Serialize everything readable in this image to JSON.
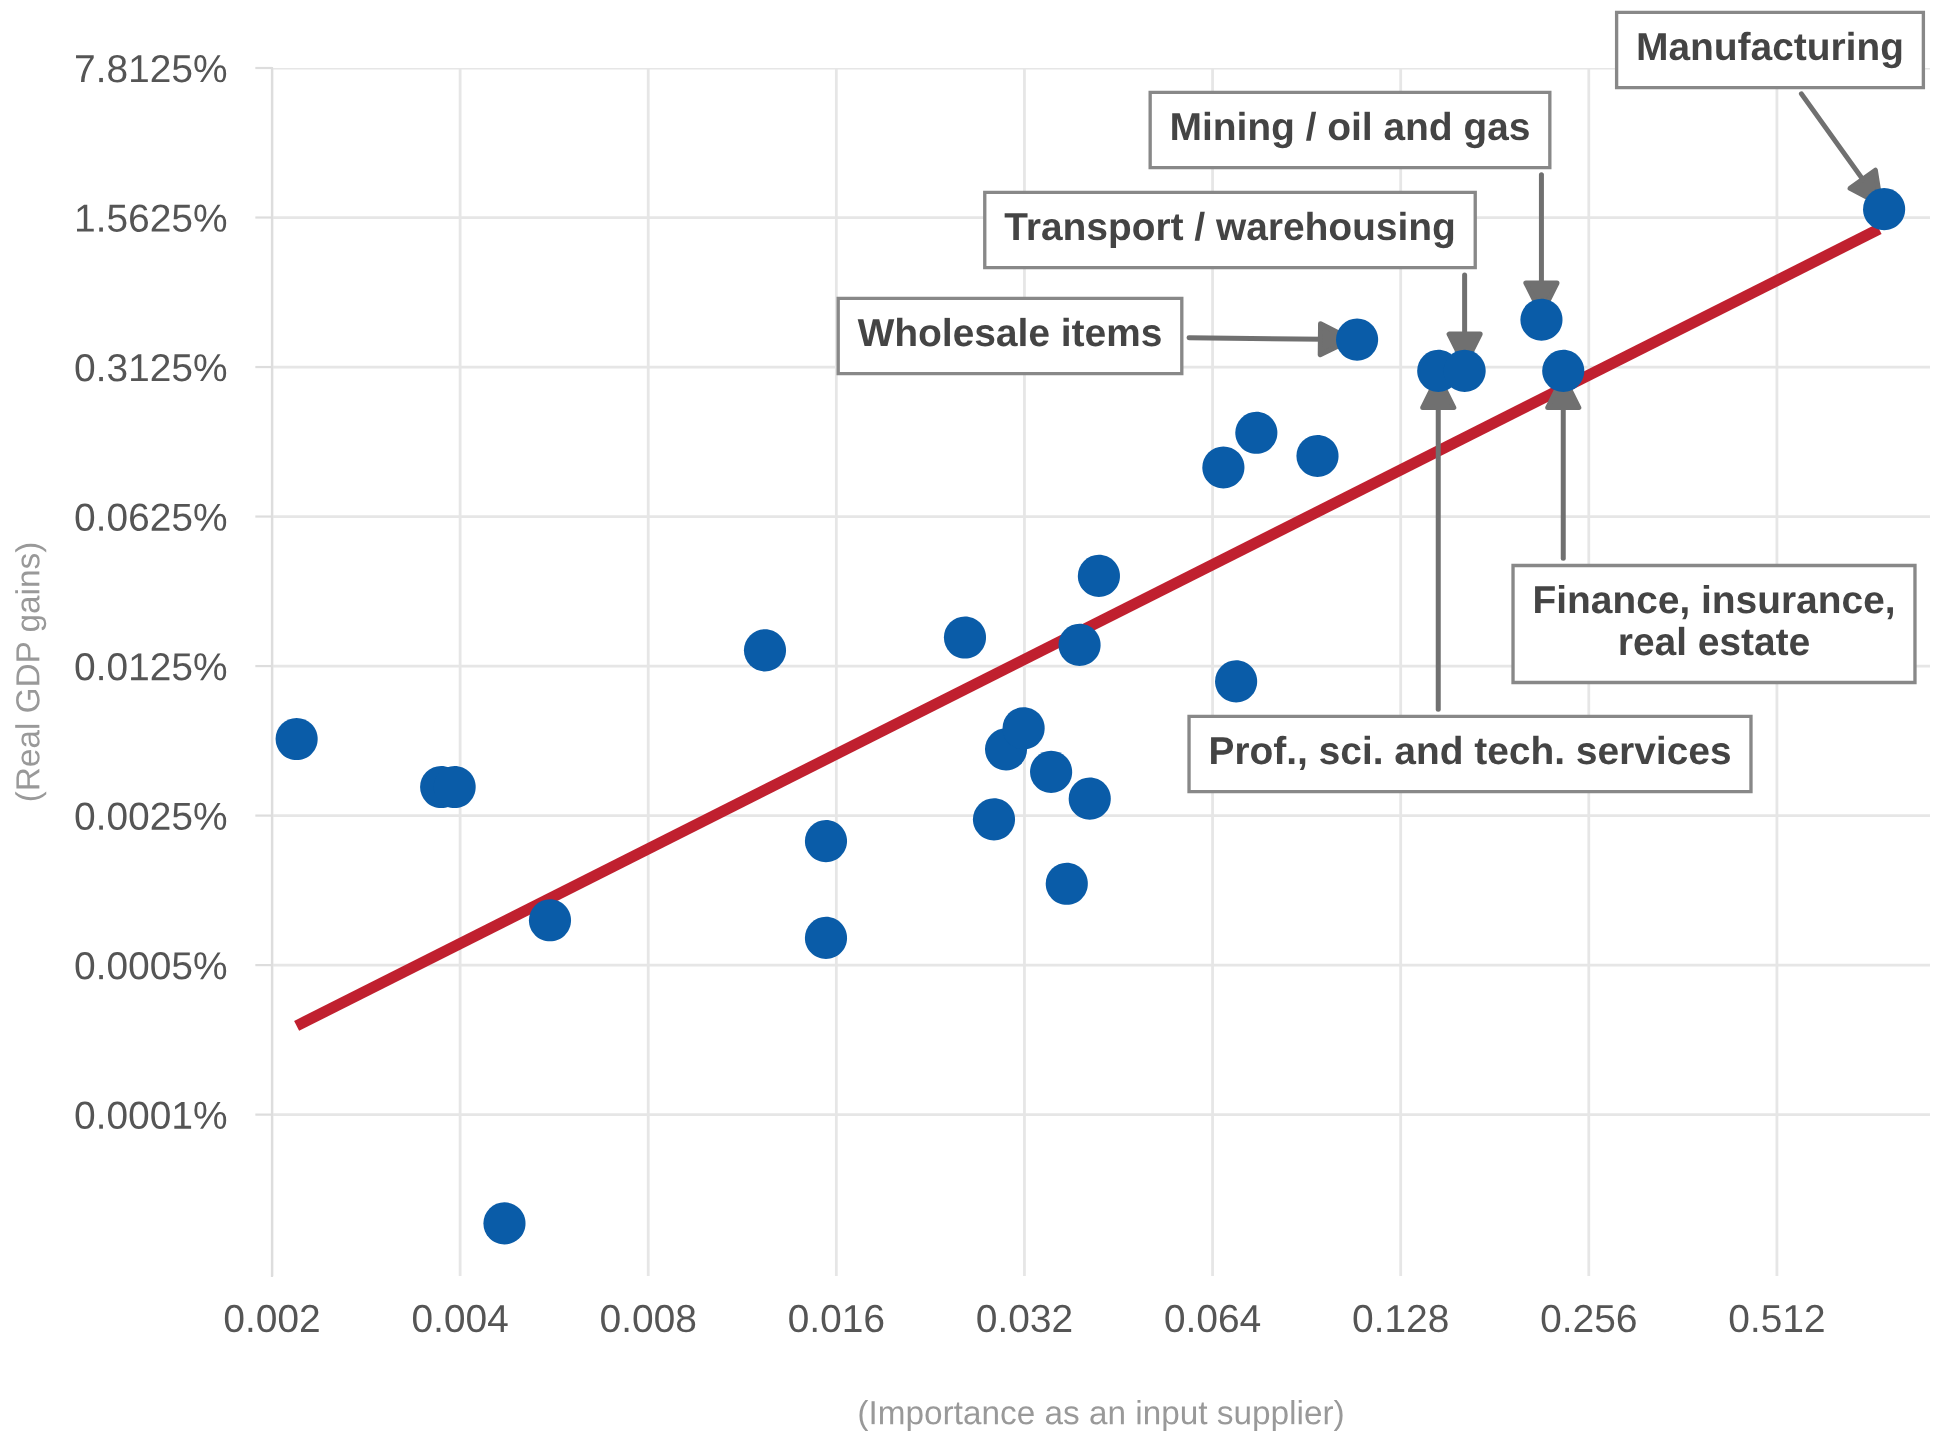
{
  "chart_data": {
    "type": "scatter",
    "xlabel": "(Importance as an input supplier)",
    "ylabel": "(Real GDP gains)",
    "log": "xy",
    "grid": true,
    "legend": false,
    "xlim": [
      0.002,
      0.9
    ],
    "ylim": [
      1.76e-05,
      7.8125
    ],
    "xticks": [
      0.002,
      0.004,
      0.008,
      0.016,
      0.032,
      0.064,
      0.128,
      0.256,
      0.512
    ],
    "yticks": [
      {
        "value": 0.0001,
        "label": "0.0001%"
      },
      {
        "value": 0.0005,
        "label": "0.0005%"
      },
      {
        "value": 0.0025,
        "label": "0.0025%"
      },
      {
        "value": 0.0125,
        "label": "0.0125%"
      },
      {
        "value": 0.0625,
        "label": "0.0625%"
      },
      {
        "value": 0.3125,
        "label": "0.3125%"
      },
      {
        "value": 1.5625,
        "label": "1.5625%"
      },
      {
        "value": 7.8125,
        "label": "7.8125%"
      }
    ],
    "series": [
      {
        "type": "scatter",
        "marker": "circle",
        "color": "#0a5ca8",
        "x": [
          0.00219,
          0.00373,
          0.00392,
          0.00471,
          0.00557,
          0.0123,
          0.0154,
          0.0154,
          0.0257,
          0.0286,
          0.0299,
          0.0319,
          0.0353,
          0.0374,
          0.0392,
          0.0407,
          0.0421,
          0.0666,
          0.0752,
          0.0942,
          0.0698,
          0.109,
          0.147,
          0.162,
          0.215,
          0.233,
          0.76
        ],
        "values": [
          0.0057,
          0.0034,
          0.0034,
          3.1e-05,
          0.00081,
          0.0148,
          0.0019,
          0.00067,
          0.017,
          0.0024,
          0.0051,
          0.0064,
          0.004,
          0.0012,
          0.0157,
          0.003,
          0.033,
          0.106,
          0.154,
          0.12,
          0.0106,
          0.42,
          0.3,
          0.3,
          0.52,
          0.3,
          1.71
        ]
      },
      {
        "type": "line",
        "color": "#c0202f",
        "x": [
          0.00219,
          0.746
        ],
        "values": [
          0.00026,
          1.38
        ]
      }
    ],
    "annotations": [
      {
        "text": "Manufacturing",
        "x": 0.76,
        "y": 1.71
      },
      {
        "text": "Mining / oil and gas",
        "x": 0.215,
        "y": 0.52
      },
      {
        "text": "Transport / warehousing",
        "x": 0.162,
        "y": 0.3
      },
      {
        "text": "Wholesale items",
        "x": 0.109,
        "y": 0.42
      },
      {
        "text": "Finance, insurance,\nreal estate",
        "x": 0.233,
        "y": 0.3
      },
      {
        "text": "Prof., sci. and tech. services",
        "x": 0.147,
        "y": 0.3
      }
    ]
  }
}
